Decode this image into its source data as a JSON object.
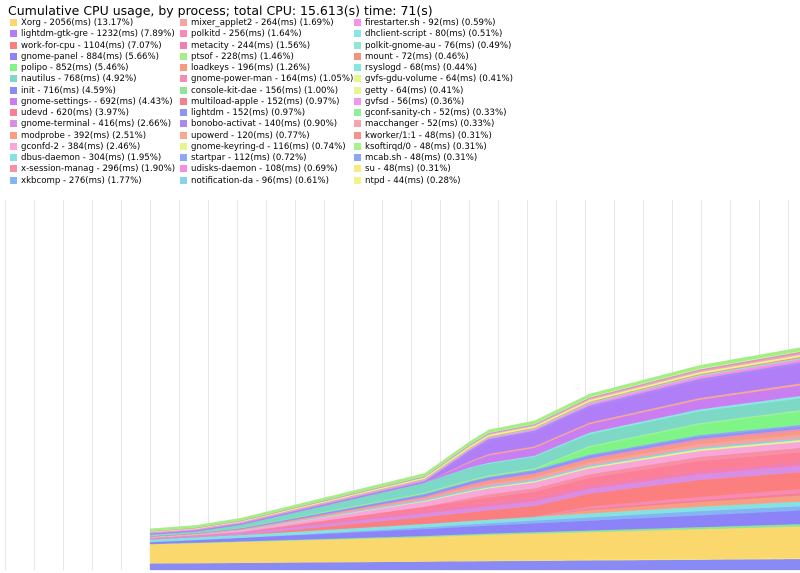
{
  "chart_data": {
    "type": "area",
    "title": "Cumulative CPU usage, by process; total CPU:  15.613(s) time: 71(s)",
    "xlabel": "",
    "ylabel": "",
    "stacked": true,
    "grid": true,
    "legend_placement": "top-left",
    "x_range_s": [
      0,
      71
    ],
    "y_range_ms": [
      0,
      15613
    ],
    "x": [
      0,
      5,
      10,
      15,
      20,
      25,
      30,
      35,
      40,
      45,
      50,
      55,
      60,
      65,
      71
    ],
    "series": [
      {
        "label": "Xorg - 2056(ms) (13.17%)",
        "color": "#fbd86d",
        "total": 2056
      },
      {
        "label": "lightdm-gtk-gre - 1232(ms) (7.89%)",
        "color": "#b07ff8",
        "total": 1232
      },
      {
        "label": "work-for-cpu - 1104(ms) (7.07%)",
        "color": "#fc7f7f",
        "total": 1104
      },
      {
        "label": "gnome-panel - 884(ms) (5.66%)",
        "color": "#8b83f7",
        "total": 884
      },
      {
        "label": "polipo - 852(ms) (5.46%)",
        "color": "#7ff587",
        "total": 852
      },
      {
        "label": "nautilus - 768(ms) (4.92%)",
        "color": "#7dd9c6",
        "total": 768
      },
      {
        "label": "init - 716(ms) (4.59%)",
        "color": "#8a8af5",
        "total": 716
      },
      {
        "label": "gnome-settings- - 692(ms) (4.43%)",
        "color": "#c97ff2",
        "total": 692
      },
      {
        "label": "udevd - 620(ms) (3.97%)",
        "color": "#fa7f97",
        "total": 620
      },
      {
        "label": "gnome-terminal - 416(ms) (2.66%)",
        "color": "#d98ee6",
        "total": 416
      },
      {
        "label": "modprobe - 392(ms) (2.51%)",
        "color": "#f99e82",
        "total": 392
      },
      {
        "label": "gconfd-2 - 384(ms) (2.46%)",
        "color": "#f7a8d8",
        "total": 384
      },
      {
        "label": "dbus-daemon - 304(ms) (1.95%)",
        "color": "#86e1e1",
        "total": 304
      },
      {
        "label": "x-session-manag - 296(ms) (1.90%)",
        "color": "#f78fa6",
        "total": 296
      },
      {
        "label": "xkbcomp - 276(ms) (1.77%)",
        "color": "#84b4f4",
        "total": 276
      },
      {
        "label": "mixer_applet2 - 264(ms) (1.69%)",
        "color": "#f5a3a3",
        "total": 264
      },
      {
        "label": "polkitd - 256(ms) (1.64%)",
        "color": "#f78bb5",
        "total": 256
      },
      {
        "label": "metacity - 244(ms) (1.56%)",
        "color": "#f27fb1",
        "total": 244
      },
      {
        "label": "ptsof - 228(ms) (1.46%)",
        "color": "#a5ee86",
        "total": 228
      },
      {
        "label": "loadkeys - 196(ms) (1.26%)",
        "color": "#f79a7e",
        "total": 196
      },
      {
        "label": "gnome-power-man - 164(ms) (1.05%)",
        "color": "#f38fae",
        "total": 164
      },
      {
        "label": "console-kit-dae - 156(ms) (1.00%)",
        "color": "#8ee59a",
        "total": 156
      },
      {
        "label": "multiload-apple - 152(ms) (0.97%)",
        "color": "#f47f8f",
        "total": 152
      },
      {
        "label": "lightdm - 152(ms) (0.97%)",
        "color": "#8b95f5",
        "total": 152
      },
      {
        "label": "bonobo-activat - 140(ms) (0.90%)",
        "color": "#a58af4",
        "total": 140
      },
      {
        "label": "upowerd - 120(ms) (0.77%)",
        "color": "#f6a98e",
        "total": 120
      },
      {
        "label": "gnome-keyring-d - 116(ms) (0.74%)",
        "color": "#e7f58a",
        "total": 116
      },
      {
        "label": "startpar - 112(ms) (0.72%)",
        "color": "#8fa8f3",
        "total": 112
      },
      {
        "label": "udisks-daemon - 108(ms) (0.69%)",
        "color": "#f58ee2",
        "total": 108
      },
      {
        "label": "notification-da - 96(ms) (0.61%)",
        "color": "#86d2ef",
        "total": 96
      },
      {
        "label": "firestarter.sh - 92(ms) (0.59%)",
        "color": "#f593ee",
        "total": 92
      },
      {
        "label": "dhclient-script - 80(ms) (0.51%)",
        "color": "#8be7e7",
        "total": 80
      },
      {
        "label": "polkit-gnome-au - 76(ms) (0.49%)",
        "color": "#8ee7cf",
        "total": 76
      },
      {
        "label": "mount - 72(ms) (0.46%)",
        "color": "#f4947a",
        "total": 72
      },
      {
        "label": "rsyslogd - 68(ms) (0.44%)",
        "color": "#84eadb",
        "total": 68
      },
      {
        "label": "gvfs-gdu-volume - 64(ms) (0.41%)",
        "color": "#e4f78a",
        "total": 64
      },
      {
        "label": "getty - 64(ms) (0.41%)",
        "color": "#eaf58d",
        "total": 64
      },
      {
        "label": "gvfsd - 56(ms) (0.36%)",
        "color": "#f595ec",
        "total": 56
      },
      {
        "label": "gconf-sanity-ch - 52(ms) (0.33%)",
        "color": "#8df09a",
        "total": 52
      },
      {
        "label": "macchanger - 52(ms) (0.33%)",
        "color": "#f7a3ad",
        "total": 52
      },
      {
        "label": "kworker/1:1 - 48(ms) (0.31%)",
        "color": "#f6928c",
        "total": 48
      },
      {
        "label": "ksoftirqd/0 - 48(ms) (0.31%)",
        "color": "#aaf08e",
        "total": 48
      },
      {
        "label": "mcab.sh - 48(ms) (0.31%)",
        "color": "#8da6f5",
        "total": 48
      },
      {
        "label": "su - 48(ms) (0.31%)",
        "color": "#f7ea83",
        "total": 48
      },
      {
        "label": "ntpd - 44(ms) (0.28%)",
        "color": "#f3f38a",
        "total": 44
      }
    ]
  }
}
